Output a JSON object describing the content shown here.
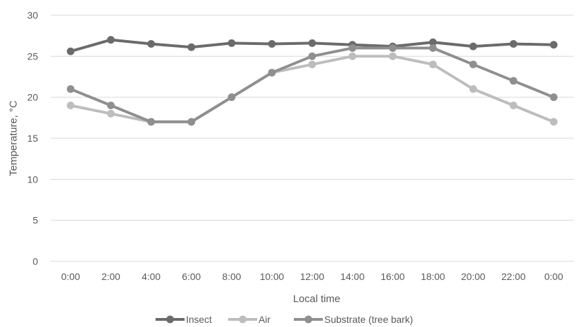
{
  "chart_data": {
    "type": "line",
    "title": "",
    "xlabel": "Local time",
    "ylabel": "Temperature, °C",
    "categories": [
      "0:00",
      "2:00",
      "4:00",
      "6:00",
      "8:00",
      "10:00",
      "12:00",
      "14:00",
      "16:00",
      "18:00",
      "20:00",
      "22:00",
      "0:00"
    ],
    "ylim": [
      0,
      30
    ],
    "yticks": [
      "0",
      "5",
      "10",
      "15",
      "20",
      "25",
      "30"
    ],
    "grid": "horizontal",
    "legend_position": "bottom",
    "series": [
      {
        "name": "Insect",
        "color": "#6b6b6b",
        "values": [
          25.6,
          27.0,
          26.5,
          26.1,
          26.6,
          26.5,
          26.6,
          26.4,
          26.2,
          26.7,
          26.2,
          26.5,
          26.4
        ]
      },
      {
        "name": "Air",
        "color": "#bdbdbd",
        "values": [
          19.0,
          18.0,
          17.0,
          17.0,
          20.0,
          23.0,
          24.0,
          25.0,
          25.0,
          24.0,
          21.0,
          19.0,
          17.0
        ]
      },
      {
        "name": "Substrate (tree bark)",
        "color": "#8f8f8f",
        "values": [
          21.0,
          19.0,
          17.0,
          17.0,
          20.0,
          23.0,
          25.0,
          26.0,
          26.0,
          26.0,
          24.0,
          22.0,
          20.0
        ]
      }
    ]
  }
}
